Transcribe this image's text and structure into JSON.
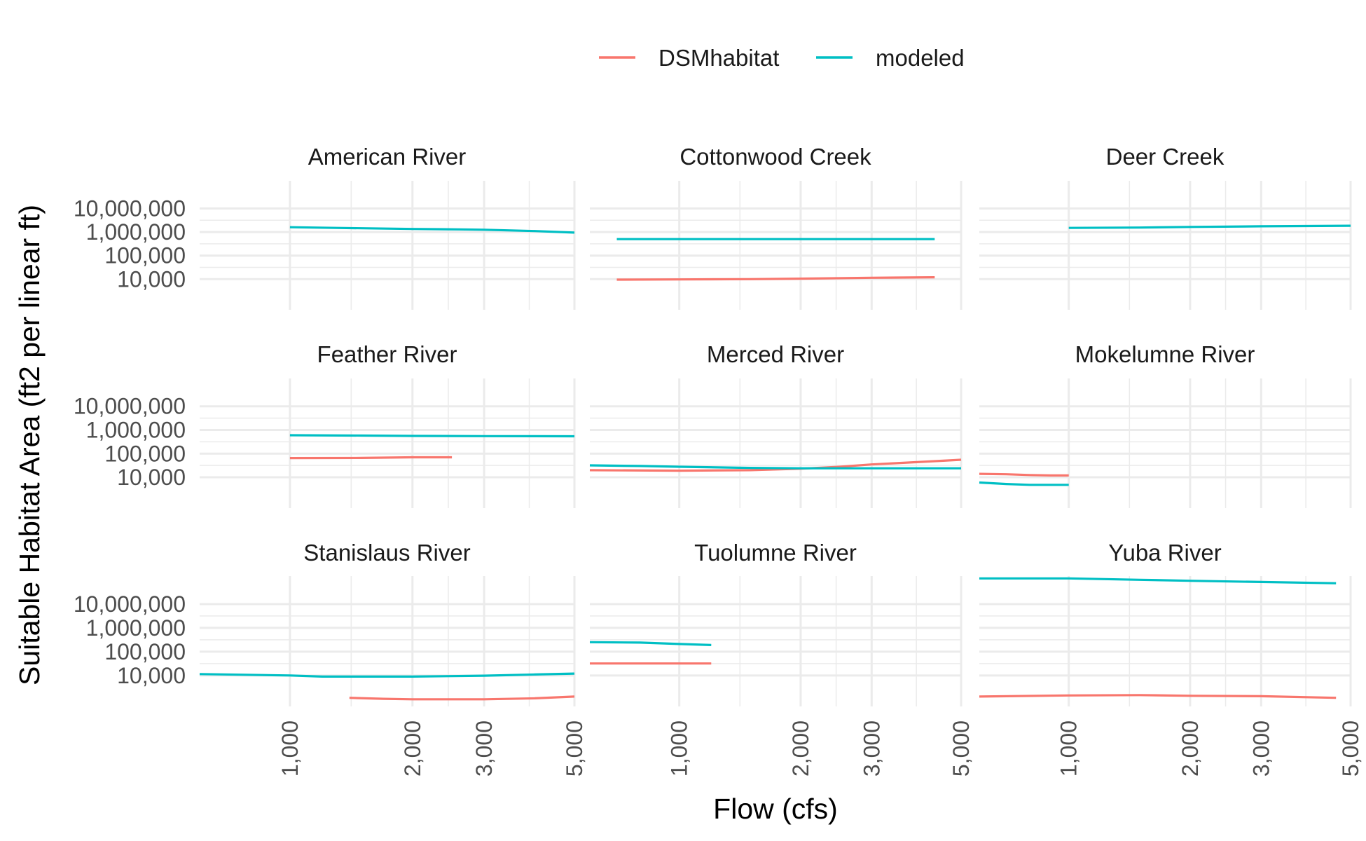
{
  "chart_data": {
    "type": "line",
    "xlabel": "Flow (cfs)",
    "ylabel": "Suitable Habitat Area (ft2 per linear ft)",
    "x_scale": "log",
    "y_scale": "log",
    "xlim": [
      600,
      5000
    ],
    "ylim": [
      500,
      150000000
    ],
    "x_ticks": [
      1000,
      2000,
      3000,
      5000
    ],
    "x_tick_labels": [
      "1,000",
      "2,000",
      "3,000",
      "5,000"
    ],
    "y_ticks": [
      10000,
      100000,
      1000000,
      10000000
    ],
    "y_tick_labels": [
      "10,000",
      "100,000",
      "1,000,000",
      "10,000,000"
    ],
    "grid": true,
    "legend_position": "top",
    "legend": [
      {
        "name": "DSMhabitat",
        "color": "#F8766D"
      },
      {
        "name": "modeled",
        "color": "#00BFC4"
      }
    ],
    "facets": [
      {
        "title": "American River",
        "series": [
          {
            "name": "modeled",
            "x": [
              1000,
              1300,
              2000,
              2600,
              3000,
              4000,
              5000
            ],
            "y": [
              1600000,
              1500000,
              1350000,
              1300000,
              1250000,
              1100000,
              950000
            ]
          }
        ]
      },
      {
        "title": "Cottonwood Creek",
        "series": [
          {
            "name": "DSMhabitat",
            "x": [
              700,
              1000,
              1500,
              2000,
              3000,
              4300
            ],
            "y": [
              9500,
              9700,
              10000,
              10500,
              11500,
              12000
            ]
          },
          {
            "name": "modeled",
            "x": [
              700,
              1000,
              2000,
              3000,
              4300
            ],
            "y": [
              500000,
              500000,
              500000,
              500000,
              500000
            ]
          }
        ]
      },
      {
        "title": "Deer Creek",
        "series": [
          {
            "name": "modeled",
            "x": [
              1000,
              1500,
              2000,
              3000,
              5000
            ],
            "y": [
              1500000,
              1550000,
              1650000,
              1750000,
              1850000
            ]
          }
        ]
      },
      {
        "title": "Feather River",
        "series": [
          {
            "name": "DSMhabitat",
            "x": [
              1000,
              1500,
              2000,
              2500
            ],
            "y": [
              65000,
              66000,
              70000,
              70000
            ]
          },
          {
            "name": "modeled",
            "x": [
              1000,
              1500,
              2000,
              3000,
              5000
            ],
            "y": [
              600000,
              580000,
              560000,
              550000,
              540000
            ]
          }
        ]
      },
      {
        "title": "Merced River",
        "series": [
          {
            "name": "DSMhabitat",
            "x": [
              600,
              1000,
              1500,
              2000,
              2500,
              3000,
              4000,
              5000
            ],
            "y": [
              20000,
              19000,
              20000,
              23000,
              28000,
              35000,
              45000,
              55000
            ]
          },
          {
            "name": "modeled",
            "x": [
              600,
              800,
              1000,
              1500,
              2000,
              3000,
              5000
            ],
            "y": [
              32000,
              30000,
              28000,
              25000,
              24000,
              24000,
              24000
            ]
          }
        ]
      },
      {
        "title": "Mokelumne River",
        "series": [
          {
            "name": "DSMhabitat",
            "x": [
              600,
              700,
              800,
              900,
              1000
            ],
            "y": [
              14000,
              13500,
              12500,
              12000,
              12000
            ]
          },
          {
            "name": "modeled",
            "x": [
              600,
              700,
              800,
              900,
              1000
            ],
            "y": [
              6000,
              5200,
              4800,
              4800,
              4800
            ]
          }
        ]
      },
      {
        "title": "Stanislaus River",
        "series": [
          {
            "name": "DSMhabitat",
            "x": [
              1400,
              1700,
              2000,
              3000,
              4000,
              5000
            ],
            "y": [
              1150,
              1050,
              1000,
              1000,
              1100,
              1300
            ]
          },
          {
            "name": "modeled",
            "x": [
              600,
              1000,
              1200,
              1500,
              2000,
              3000,
              4000,
              5000
            ],
            "y": [
              11500,
              10000,
              9000,
              9000,
              9000,
              9800,
              11000,
              12000
            ]
          }
        ]
      },
      {
        "title": "Tuolumne River",
        "series": [
          {
            "name": "DSMhabitat",
            "x": [
              600,
              800,
              1200
            ],
            "y": [
              32000,
              32000,
              32000
            ]
          },
          {
            "name": "modeled",
            "x": [
              600,
              800,
              1000,
              1200
            ],
            "y": [
              250000,
              240000,
              210000,
              190000
            ]
          }
        ]
      },
      {
        "title": "Yuba River",
        "series": [
          {
            "name": "DSMhabitat",
            "x": [
              600,
              1000,
              1500,
              2000,
              3000,
              4600
            ],
            "y": [
              1300,
              1450,
              1500,
              1400,
              1350,
              1150
            ]
          },
          {
            "name": "modeled",
            "x": [
              600,
              1000,
              1500,
              2000,
              3000,
              4600
            ],
            "y": [
              120000000,
              120000000,
              105000000,
              95000000,
              85000000,
              75000000
            ]
          }
        ]
      }
    ]
  }
}
